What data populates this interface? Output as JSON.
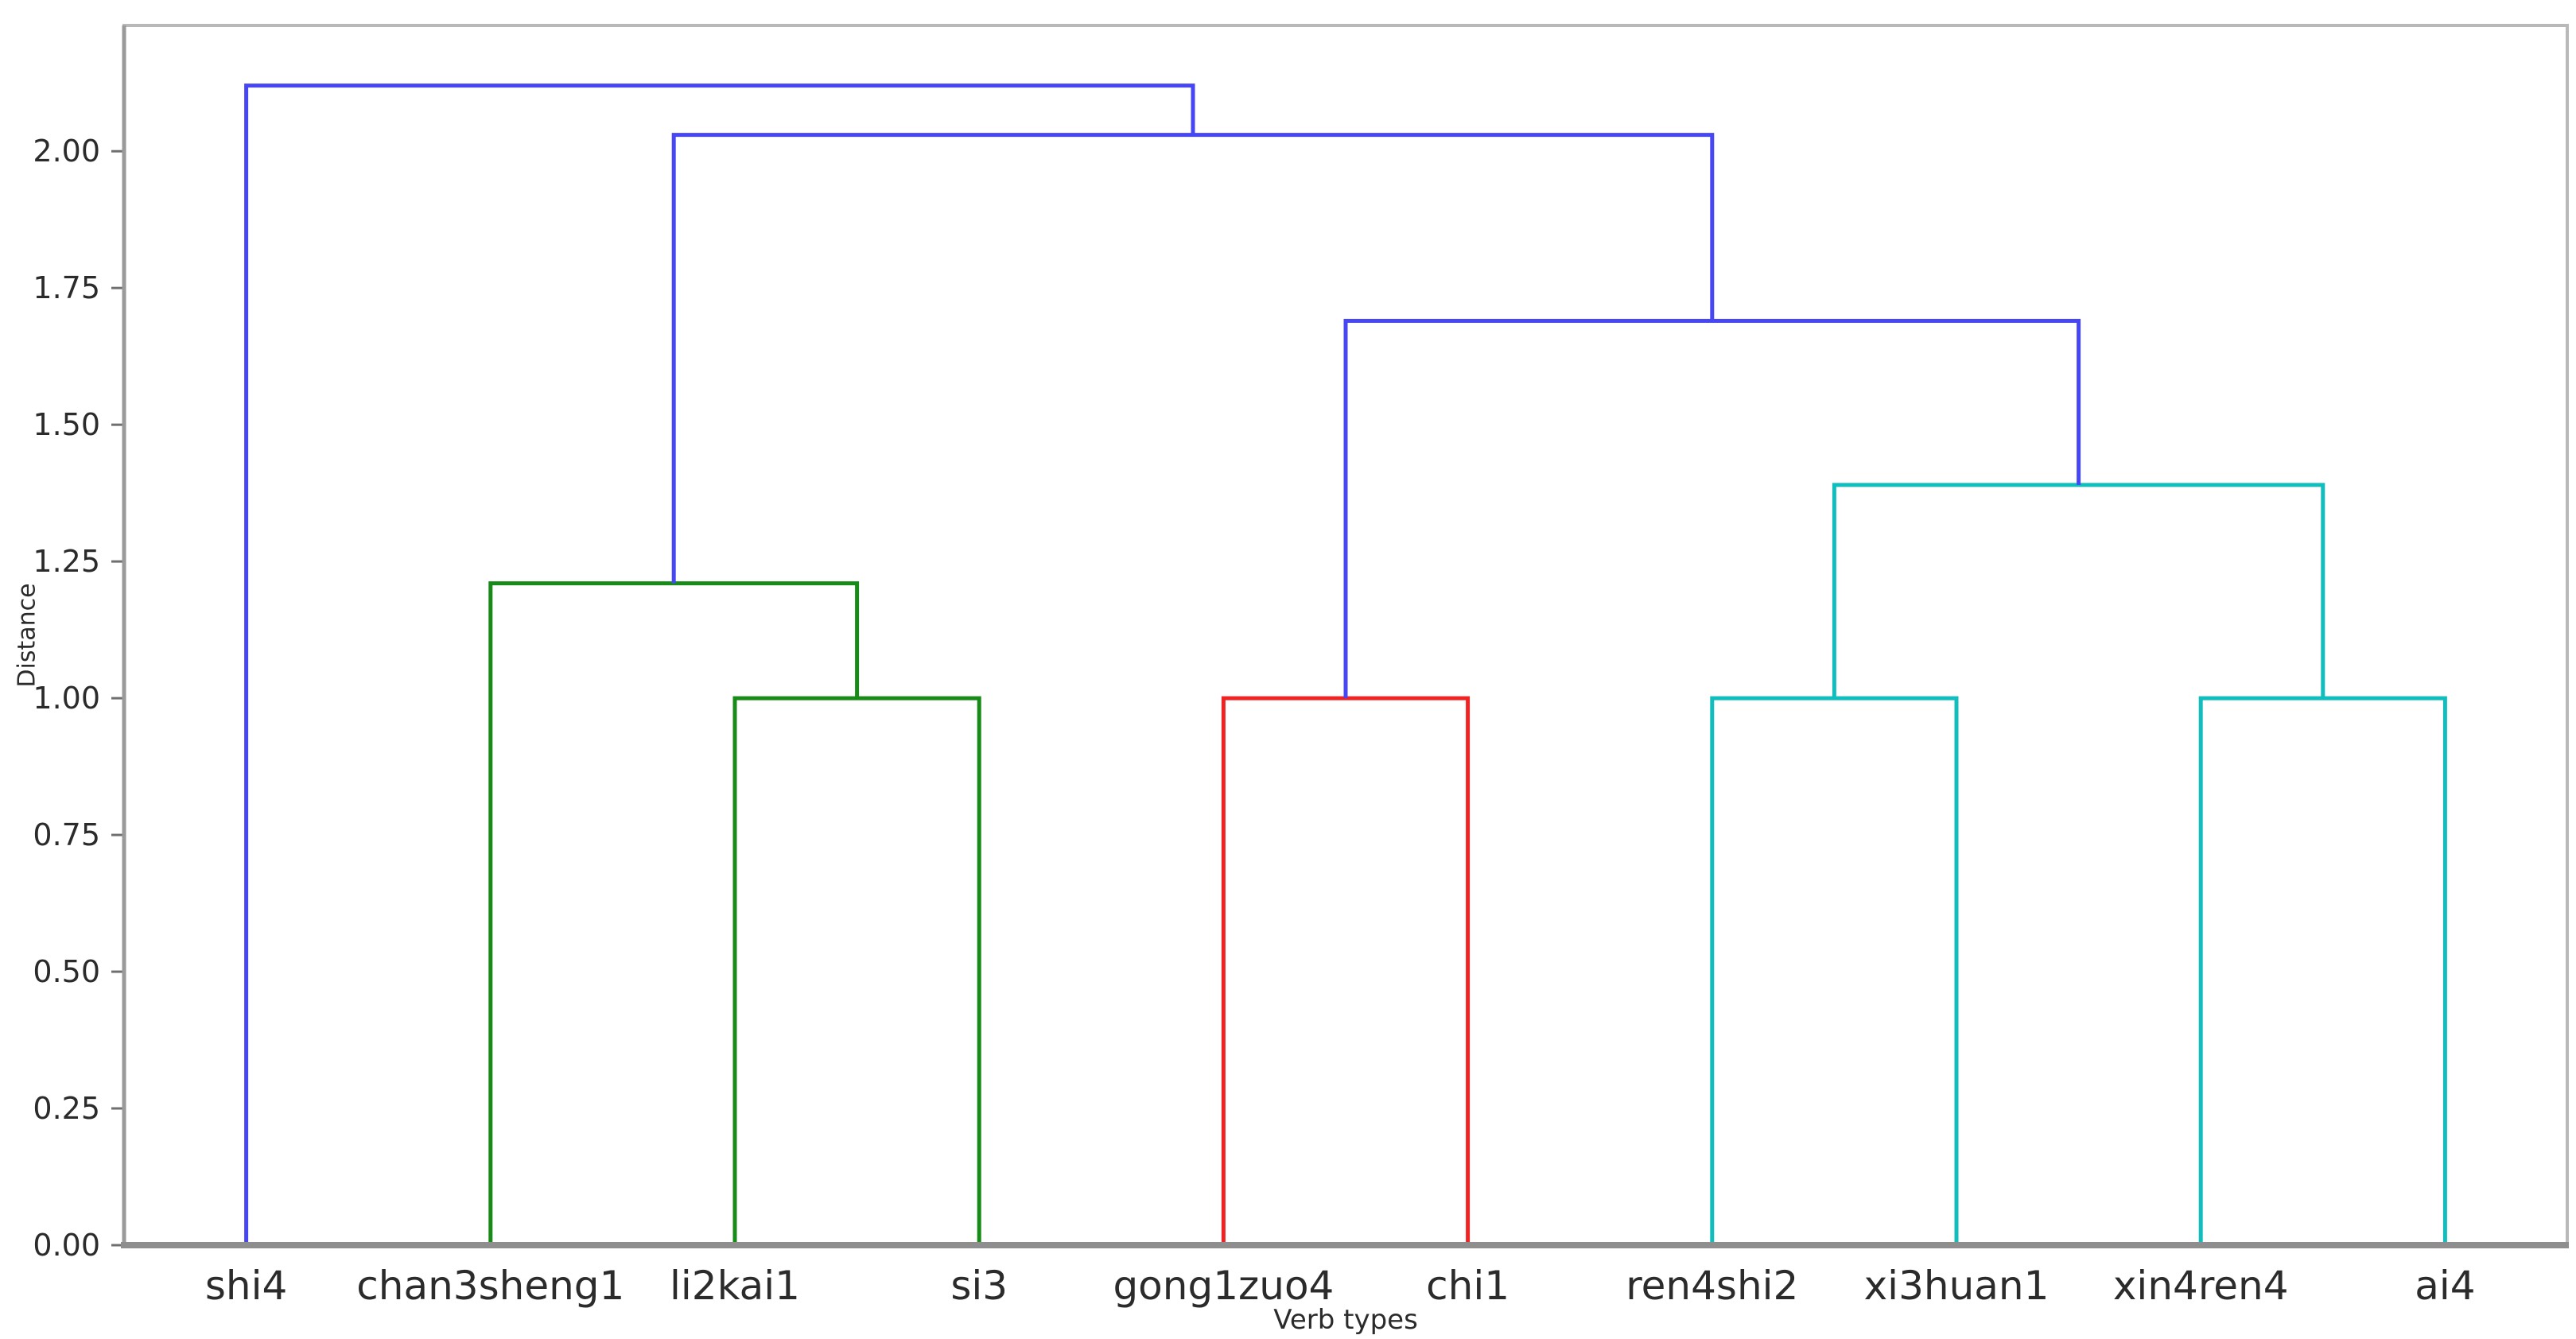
{
  "figure": {
    "background": "#ffffff"
  },
  "chart_data": {
    "type": "dendrogram",
    "title": "",
    "xlabel": "Verb types",
    "ylabel": "Distance",
    "grid": false,
    "legend": null,
    "leaves": [
      "shi4",
      "chan3sheng1",
      "li2kai1",
      "si3",
      "gong1zuo4",
      "chi1",
      "ren4shi2",
      "xi3huan1",
      "xin4ren4",
      "ai4"
    ],
    "y_ticks": [
      "0.00",
      "0.25",
      "0.50",
      "0.75",
      "1.00",
      "1.25",
      "1.50",
      "1.75",
      "2.00"
    ],
    "y_tick_values": [
      0.0,
      0.25,
      0.5,
      0.75,
      1.0,
      1.25,
      1.5,
      1.75,
      2.0
    ],
    "ylim": [
      0,
      2.23
    ],
    "colors": {
      "blue": "#4646f2",
      "green": "#178a17",
      "red": "#ee2424",
      "cyan": "#12bdbd",
      "spine": "#b9b9b9",
      "axis_left": "#9a9a9a",
      "axis_bottom": "#8e8e8e",
      "tick": "#6f6f6f",
      "text": "#2b2b2b"
    },
    "links": [
      {
        "name": "li2kai1+si3",
        "color": "green",
        "height": 1.0,
        "x1": 2.5,
        "y1": 0.0,
        "x2": 3.5,
        "y2": 0.0
      },
      {
        "name": "chan3sheng1+(li2kai1,si3)",
        "color": "green",
        "height": 1.21,
        "x1": 1.5,
        "y1": 0.0,
        "x2": 3.0,
        "y2": 1.0
      },
      {
        "name": "gong1zuo4+chi1",
        "color": "red",
        "height": 1.0,
        "x1": 4.5,
        "y1": 0.0,
        "x2": 5.5,
        "y2": 0.0
      },
      {
        "name": "ren4shi2+xi3huan1",
        "color": "cyan",
        "height": 1.0,
        "x1": 6.5,
        "y1": 0.0,
        "x2": 7.5,
        "y2": 0.0
      },
      {
        "name": "xin4ren4+ai4",
        "color": "cyan",
        "height": 1.0,
        "x1": 8.5,
        "y1": 0.0,
        "x2": 9.5,
        "y2": 0.0
      },
      {
        "name": "(ren4shi2,xi3huan1)+(xin4ren4,ai4)",
        "color": "cyan",
        "height": 1.39,
        "x1": 7.0,
        "y1": 1.0,
        "x2": 9.0,
        "y2": 1.0
      },
      {
        "name": "(gong1zuo4,chi1)+cyan-cluster",
        "color": "blue",
        "height": 1.69,
        "x1": 5.0,
        "y1": 1.0,
        "x2": 8.0,
        "y2": 1.39
      },
      {
        "name": "green-cluster+blue-cluster",
        "color": "blue",
        "height": 2.03,
        "x1": 2.25,
        "y1": 1.21,
        "x2": 6.5,
        "y2": 1.69
      },
      {
        "name": "shi4+rest (root)",
        "color": "blue",
        "height": 2.12,
        "x1": 0.5,
        "y1": 0.0,
        "x2": 4.375,
        "y2": 2.03
      }
    ]
  }
}
